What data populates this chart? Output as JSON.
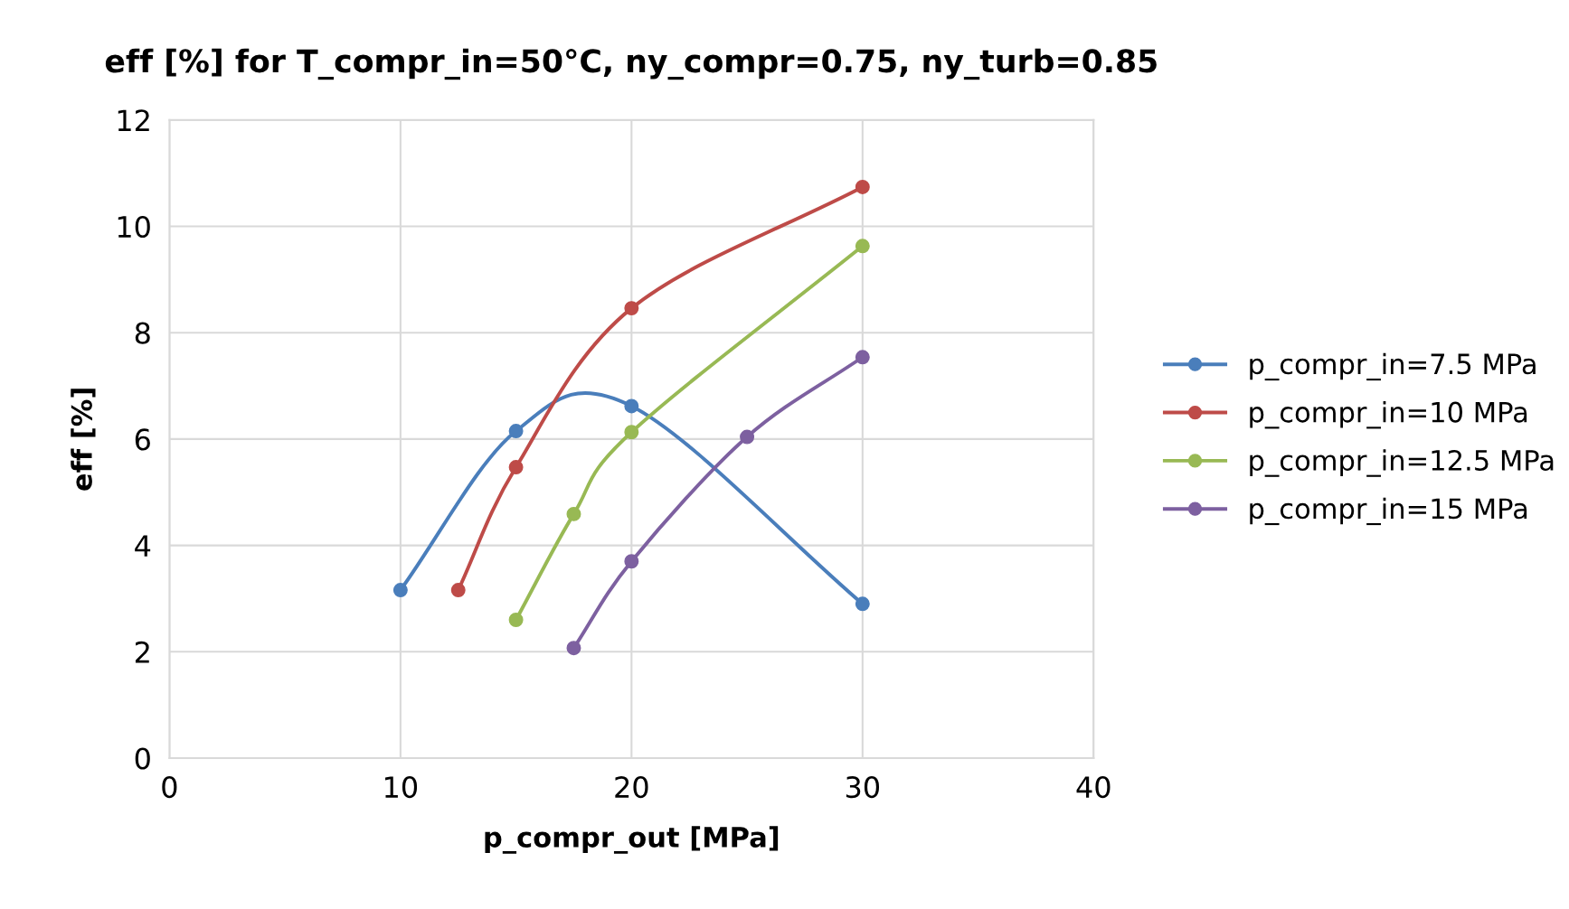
{
  "chart_data": {
    "type": "line",
    "title": "eff [%] for T_compr_in=50°C, ny_compr=0.75, ny_turb=0.85",
    "xlabel": "p_compr_out [MPa]",
    "ylabel": "eff [%]",
    "xlim": [
      0,
      40
    ],
    "xticks": [
      0,
      10,
      20,
      30,
      40
    ],
    "ylim": [
      0,
      12
    ],
    "yticks": [
      0,
      2,
      4,
      6,
      8,
      10,
      12
    ],
    "grid": true,
    "legend": "right",
    "marker": "circle",
    "line_style": "solid",
    "series": [
      {
        "name": "p_compr_in=7.5 MPa",
        "color": "#4a7ebb",
        "x": [
          10,
          15,
          20,
          30
        ],
        "values": [
          3.16,
          6.15,
          6.62,
          2.9
        ]
      },
      {
        "name": "p_compr_in=10 MPa",
        "color": "#be4b48",
        "x": [
          12.5,
          15,
          20,
          30
        ],
        "values": [
          3.16,
          5.47,
          8.46,
          10.74
        ]
      },
      {
        "name": "p_compr_in=12.5 MPa",
        "color": "#98b954",
        "x": [
          15,
          17.5,
          20,
          30
        ],
        "values": [
          2.6,
          4.59,
          6.13,
          9.63
        ]
      },
      {
        "name": "p_compr_in=15 MPa",
        "color": "#7d60a0",
        "x": [
          17.5,
          20,
          25,
          30
        ],
        "values": [
          2.07,
          3.7,
          6.04,
          7.54
        ]
      }
    ]
  }
}
